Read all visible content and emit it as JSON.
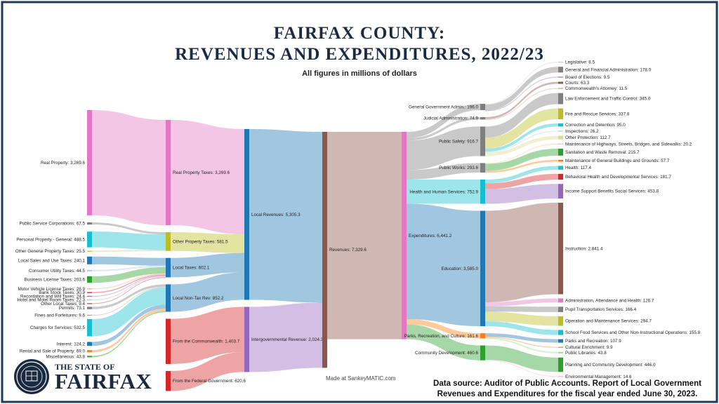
{
  "header": {
    "title_line1": "FAIRFAX COUNTY:",
    "title_line2": "REVENUES AND EXPENDITURES, 2022/23",
    "subtitle": "All figures in millions of dollars"
  },
  "footer": {
    "credit": "Made at SankeyMATIC.com",
    "source_line1": "Data source: Auditor of Public Accounts. Report of Local Government",
    "source_line2": "Revenues and Expenditures for the fiscal year ended June 30, 2023."
  },
  "brand": {
    "line1": "THE STATE OF",
    "line2": "FAIRFAX",
    "seal_icon": "county-seal-icon"
  },
  "colors": {
    "border": "#1f3b5c",
    "title": "#1a2a40"
  },
  "nodes": [
    {
      "id": "real_property",
      "label": "Real Property: 3,269.6",
      "value": 3269.6,
      "color": "#e377c2",
      "col": 0
    },
    {
      "id": "public_service",
      "label": "Public Service Corporations: 67.5",
      "value": 67.5,
      "color": "#7f7f7f",
      "col": 0
    },
    {
      "id": "personal_property",
      "label": "Personal Property - General: 488.5",
      "value": 488.5,
      "color": "#17becf",
      "col": 0
    },
    {
      "id": "other_general_property",
      "label": "Other General Property Taxes: 25.5",
      "value": 25.5,
      "color": "#bcbd22",
      "col": 0
    },
    {
      "id": "local_sales",
      "label": "Local Sales and Use Taxes: 240.1",
      "value": 240.1,
      "color": "#1f77b4",
      "col": 0
    },
    {
      "id": "consumer_utility",
      "label": "Consumer Utility Taxes: 44.5",
      "value": 44.5,
      "color": "#aec7e8",
      "col": 0
    },
    {
      "id": "business_license",
      "label": "Business License Taxes: 203.6",
      "value": 203.6,
      "color": "#2ca02c",
      "col": 0
    },
    {
      "id": "motor_vehicle",
      "label": "Motor Vehicle License Taxes: 26.9",
      "value": 26.9,
      "color": "#ff9896",
      "col": 0
    },
    {
      "id": "bank_stock",
      "label": "Bank Stock Taxes: 30.9",
      "value": 30.9,
      "color": "#d62728",
      "col": 0
    },
    {
      "id": "recordation",
      "label": "Recordation and Will Taxes: 24.4",
      "value": 24.4,
      "color": "#9467bd",
      "col": 0
    },
    {
      "id": "hotel",
      "label": "Hotel and Motel Room Taxes: 22.3",
      "value": 22.3,
      "color": "#c5b0d5",
      "col": 0
    },
    {
      "id": "other_local",
      "label": "Other Local Taxes: 9.4",
      "value": 9.4,
      "color": "#8c564b",
      "col": 0
    },
    {
      "id": "permits",
      "label": "Permits: 73.1",
      "value": 73.1,
      "color": "#7f7f7f",
      "col": 0
    },
    {
      "id": "fines",
      "label": "Fines and Forfeitures: 9.6",
      "value": 9.6,
      "color": "#c49c94",
      "col": 0
    },
    {
      "id": "charges",
      "label": "Charges for Services: 532.5",
      "value": 532.5,
      "color": "#17becf",
      "col": 0
    },
    {
      "id": "interest",
      "label": "Interest: 124.2",
      "value": 124.2,
      "color": "#1f77b4",
      "col": 0
    },
    {
      "id": "rental",
      "label": "Rental and Sale of Property: 69.0",
      "value": 69.0,
      "color": "#ff7f0e",
      "col": 0
    },
    {
      "id": "misc",
      "label": "Miscellaneous: 43.8",
      "value": 43.8,
      "color": "#2ca02c",
      "col": 0
    },
    {
      "id": "real_property_taxes",
      "label": "Real Property Taxes: 3,269.6",
      "value": 3269.6,
      "color": "#e377c2",
      "col": 1
    },
    {
      "id": "other_property_taxes",
      "label": "Other Property Taxes: 581.5",
      "value": 581.5,
      "color": "#bcbd22",
      "col": 1
    },
    {
      "id": "local_taxes",
      "label": "Local Taxes: 602.1",
      "value": 602.1,
      "color": "#1f77b4",
      "col": 1
    },
    {
      "id": "local_nontax",
      "label": "Local Non-Tax Rev: 852.2",
      "value": 852.2,
      "color": "#1f77b4",
      "col": 1
    },
    {
      "id": "from_commonwealth",
      "label": "From the Commonwealth: 1,403.7",
      "value": 1403.7,
      "color": "#d62728",
      "col": 1
    },
    {
      "id": "from_federal",
      "label": "From the Federal Government: 620.6",
      "value": 620.6,
      "color": "#d62728",
      "col": 1
    },
    {
      "id": "local_revenues",
      "label": "Local Revenues: 5,305.3",
      "value": 5305.3,
      "color": "#1f77b4",
      "col": 2
    },
    {
      "id": "intergov_revenue",
      "label": "Intergovernmental Revenue: 2,024.3",
      "value": 2024.3,
      "color": "#9467bd",
      "col": 2
    },
    {
      "id": "revenues",
      "label": "Revenues: 7,329.6",
      "value": 7329.6,
      "color": "#8c564b",
      "col": 3
    },
    {
      "id": "expenditures",
      "label": "Expenditures: 6,441.2",
      "value": 6441.2,
      "color": "#e377c2",
      "col": 4
    },
    {
      "id": "general_gov",
      "label": "General Government Admin.: 196.0",
      "value": 196.0,
      "color": "#7f7f7f",
      "col": 5
    },
    {
      "id": "judicial",
      "label": "Judicial Administration: 74.9",
      "value": 74.9,
      "color": "#7f7f7f",
      "col": 5
    },
    {
      "id": "public_safety",
      "label": "Public Safety: 916.7",
      "value": 916.7,
      "color": "#7f7f7f",
      "col": 5
    },
    {
      "id": "public_works",
      "label": "Public Works: 293.6",
      "value": 293.6,
      "color": "#7f7f7f",
      "col": 5
    },
    {
      "id": "health_human",
      "label": "Health and Human Services: 752.9",
      "value": 752.9,
      "color": "#17becf",
      "col": 5
    },
    {
      "id": "education",
      "label": "Education: 3,585.0",
      "value": 3585.0,
      "color": "#1f77b4",
      "col": 5
    },
    {
      "id": "parks_culture",
      "label": "Parks, Recreation, and Culture: 161.6",
      "value": 161.6,
      "color": "#ff7f0e",
      "col": 5
    },
    {
      "id": "community_dev",
      "label": "Community Development: 460.6",
      "value": 460.6,
      "color": "#2ca02c",
      "col": 5
    },
    {
      "id": "legislative",
      "label": "Legislative: 8.5",
      "value": 8.5,
      "color": "#c7c7c7",
      "col": 6
    },
    {
      "id": "gen_fin_admin",
      "label": "General and Financial Administration: 178.0",
      "value": 178.0,
      "color": "#7f7f7f",
      "col": 6
    },
    {
      "id": "board_elections",
      "label": "Board of Elections: 9.5",
      "value": 9.5,
      "color": "#9467bd",
      "col": 6
    },
    {
      "id": "courts",
      "label": "Courts: 63.3",
      "value": 63.3,
      "color": "#8c564b",
      "col": 6
    },
    {
      "id": "commonwealth_atty",
      "label": "Commonwealth's Attorney: 11.5",
      "value": 11.5,
      "color": "#c49c94",
      "col": 6
    },
    {
      "id": "law_enforcement",
      "label": "Law Enforcement and Traffic Control: 345.0",
      "value": 345.0,
      "color": "#7f7f7f",
      "col": 6
    },
    {
      "id": "fire_rescue",
      "label": "Fire and Rescue Services: 337.8",
      "value": 337.8,
      "color": "#bcbd22",
      "col": 6
    },
    {
      "id": "correction",
      "label": "Correction and Detention: 95.0",
      "value": 95.0,
      "color": "#17becf",
      "col": 6
    },
    {
      "id": "inspections",
      "label": "Inspections: 26.2",
      "value": 26.2,
      "color": "#9edae5",
      "col": 6
    },
    {
      "id": "other_protection",
      "label": "Other Protection: 112.7",
      "value": 112.7,
      "color": "#dbdb8d",
      "col": 6
    },
    {
      "id": "maint_highways",
      "label": "Maintenance of Highways, Streets, Bridges, and Sidewalks: 20.2",
      "value": 20.2,
      "color": "#ffbb78",
      "col": 6
    },
    {
      "id": "sanitation",
      "label": "Sanitation and Waste Removal: 215.7",
      "value": 215.7,
      "color": "#2ca02c",
      "col": 6
    },
    {
      "id": "maint_buildings",
      "label": "Maintenance of General Buildings and Grounds: 57.7",
      "value": 57.7,
      "color": "#ff7f0e",
      "col": 6
    },
    {
      "id": "health",
      "label": "Health: 117.4",
      "value": 117.4,
      "color": "#17becf",
      "col": 6
    },
    {
      "id": "behavioral",
      "label": "Behavioral Health and Developmental Services: 181.7",
      "value": 181.7,
      "color": "#d62728",
      "col": 6
    },
    {
      "id": "income_support",
      "label": "Income Support Benefits Social Services: 453.8",
      "value": 453.8,
      "color": "#9467bd",
      "col": 6
    },
    {
      "id": "instruction",
      "label": "Instruction: 2,841.4",
      "value": 2841.4,
      "color": "#8c564b",
      "col": 6
    },
    {
      "id": "admin_attendance",
      "label": "Administration, Attendance and Health: 126.7",
      "value": 126.7,
      "color": "#e377c2",
      "col": 6
    },
    {
      "id": "pupil_transport",
      "label": "Pupil Transportation Services: 166.4",
      "value": 166.4,
      "color": "#7f7f7f",
      "col": 6
    },
    {
      "id": "operation_maint",
      "label": "Operation and Maintenance Services: 294.7",
      "value": 294.7,
      "color": "#bcbd22",
      "col": 6
    },
    {
      "id": "school_food",
      "label": "School Food Services and Other Non-Instructional Operations: 155.8",
      "value": 155.8,
      "color": "#17becf",
      "col": 6
    },
    {
      "id": "parks_rec",
      "label": "Parks and Recreation: 107.9",
      "value": 107.9,
      "color": "#1f77b4",
      "col": 6
    },
    {
      "id": "cultural",
      "label": "Cultural Enrichment: 9.9",
      "value": 9.9,
      "color": "#ff7f0e",
      "col": 6
    },
    {
      "id": "public_libraries",
      "label": "Public Libraries: 43.8",
      "value": 43.8,
      "color": "#98df8a",
      "col": 6
    },
    {
      "id": "planning",
      "label": "Planning and Community Development: 446.0",
      "value": 446.0,
      "color": "#2ca02c",
      "col": 6
    },
    {
      "id": "environmental",
      "label": "Environmental Management: 14.6",
      "value": 14.6,
      "color": "#f7b6d2",
      "col": 6
    }
  ],
  "links": [
    {
      "source": "real_property",
      "target": "real_property_taxes",
      "value": 3269.6
    },
    {
      "source": "public_service",
      "target": "other_property_taxes",
      "value": 67.5
    },
    {
      "source": "personal_property",
      "target": "other_property_taxes",
      "value": 488.5
    },
    {
      "source": "other_general_property",
      "target": "other_property_taxes",
      "value": 25.5
    },
    {
      "source": "local_sales",
      "target": "local_taxes",
      "value": 240.1
    },
    {
      "source": "consumer_utility",
      "target": "local_taxes",
      "value": 44.5
    },
    {
      "source": "business_license",
      "target": "local_taxes",
      "value": 203.6
    },
    {
      "source": "motor_vehicle",
      "target": "local_taxes",
      "value": 26.9
    },
    {
      "source": "bank_stock",
      "target": "local_taxes",
      "value": 30.9
    },
    {
      "source": "recordation",
      "target": "local_taxes",
      "value": 24.4
    },
    {
      "source": "hotel",
      "target": "local_taxes",
      "value": 22.3
    },
    {
      "source": "other_local",
      "target": "local_taxes",
      "value": 9.4
    },
    {
      "source": "permits",
      "target": "local_nontax",
      "value": 73.1
    },
    {
      "source": "fines",
      "target": "local_nontax",
      "value": 9.6
    },
    {
      "source": "charges",
      "target": "local_nontax",
      "value": 532.5
    },
    {
      "source": "interest",
      "target": "local_nontax",
      "value": 124.2
    },
    {
      "source": "rental",
      "target": "local_nontax",
      "value": 69.0
    },
    {
      "source": "misc",
      "target": "local_nontax",
      "value": 43.8
    },
    {
      "source": "real_property_taxes",
      "target": "local_revenues",
      "value": 3269.6
    },
    {
      "source": "other_property_taxes",
      "target": "local_revenues",
      "value": 581.5
    },
    {
      "source": "local_taxes",
      "target": "local_revenues",
      "value": 602.1
    },
    {
      "source": "local_nontax",
      "target": "local_revenues",
      "value": 852.2
    },
    {
      "source": "from_commonwealth",
      "target": "intergov_revenue",
      "value": 1403.7
    },
    {
      "source": "from_federal",
      "target": "intergov_revenue",
      "value": 620.6
    },
    {
      "source": "local_revenues",
      "target": "revenues",
      "value": 5305.3
    },
    {
      "source": "intergov_revenue",
      "target": "revenues",
      "value": 2024.3
    },
    {
      "source": "revenues",
      "target": "expenditures",
      "value": 6441.2
    },
    {
      "source": "expenditures",
      "target": "general_gov",
      "value": 196.0
    },
    {
      "source": "expenditures",
      "target": "judicial",
      "value": 74.9
    },
    {
      "source": "expenditures",
      "target": "public_safety",
      "value": 916.7
    },
    {
      "source": "expenditures",
      "target": "public_works",
      "value": 293.6
    },
    {
      "source": "expenditures",
      "target": "health_human",
      "value": 752.9
    },
    {
      "source": "expenditures",
      "target": "education",
      "value": 3585.0
    },
    {
      "source": "expenditures",
      "target": "parks_culture",
      "value": 161.6
    },
    {
      "source": "expenditures",
      "target": "community_dev",
      "value": 460.6
    },
    {
      "source": "general_gov",
      "target": "legislative",
      "value": 8.5
    },
    {
      "source": "general_gov",
      "target": "gen_fin_admin",
      "value": 178.0
    },
    {
      "source": "general_gov",
      "target": "board_elections",
      "value": 9.5
    },
    {
      "source": "judicial",
      "target": "courts",
      "value": 63.3
    },
    {
      "source": "judicial",
      "target": "commonwealth_atty",
      "value": 11.5
    },
    {
      "source": "public_safety",
      "target": "law_enforcement",
      "value": 345.0
    },
    {
      "source": "public_safety",
      "target": "fire_rescue",
      "value": 337.8
    },
    {
      "source": "public_safety",
      "target": "correction",
      "value": 95.0
    },
    {
      "source": "public_safety",
      "target": "inspections",
      "value": 26.2
    },
    {
      "source": "public_safety",
      "target": "other_protection",
      "value": 112.7
    },
    {
      "source": "public_works",
      "target": "maint_highways",
      "value": 20.2
    },
    {
      "source": "public_works",
      "target": "sanitation",
      "value": 215.7
    },
    {
      "source": "public_works",
      "target": "maint_buildings",
      "value": 57.7
    },
    {
      "source": "health_human",
      "target": "health",
      "value": 117.4
    },
    {
      "source": "health_human",
      "target": "behavioral",
      "value": 181.7
    },
    {
      "source": "health_human",
      "target": "income_support",
      "value": 453.8
    },
    {
      "source": "education",
      "target": "instruction",
      "value": 2841.4
    },
    {
      "source": "education",
      "target": "admin_attendance",
      "value": 126.7
    },
    {
      "source": "education",
      "target": "pupil_transport",
      "value": 166.4
    },
    {
      "source": "education",
      "target": "operation_maint",
      "value": 294.7
    },
    {
      "source": "education",
      "target": "school_food",
      "value": 155.8
    },
    {
      "source": "parks_culture",
      "target": "parks_rec",
      "value": 107.9
    },
    {
      "source": "parks_culture",
      "target": "cultural",
      "value": 9.9
    },
    {
      "source": "parks_culture",
      "target": "public_libraries",
      "value": 43.8
    },
    {
      "source": "community_dev",
      "target": "planning",
      "value": 446.0
    },
    {
      "source": "community_dev",
      "target": "environmental",
      "value": 14.6
    }
  ]
}
